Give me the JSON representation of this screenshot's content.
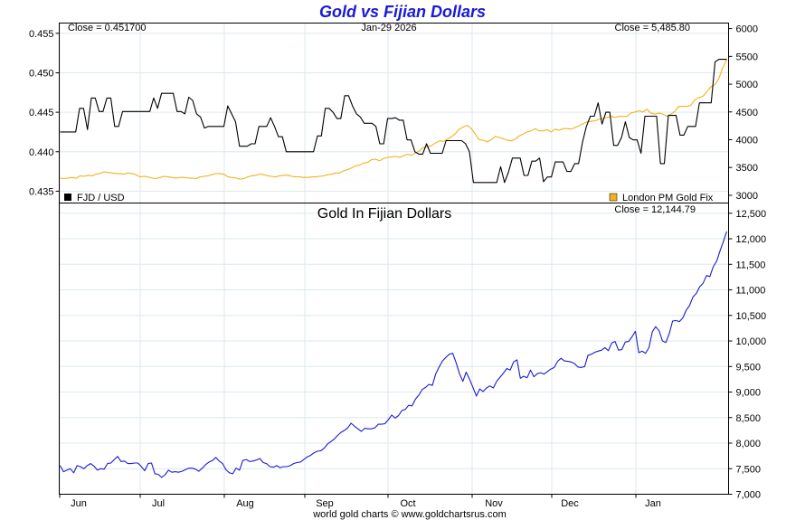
{
  "chart_data": [
    {
      "type": "line",
      "title": "Gold vs Fijian Dollars",
      "date": "Jan-29  2026",
      "left_axis": {
        "ylim": [
          0.4335,
          0.4563
        ],
        "ticks": [
          "0.455",
          "0.450",
          "0.445",
          "0.440",
          "0.435"
        ],
        "tick_values": [
          0.455,
          0.45,
          0.445,
          0.44,
          0.435
        ]
      },
      "right_axis": {
        "ylim": [
          2860,
          6100
        ],
        "ticks": [
          "6000",
          "5500",
          "5000",
          "4500",
          "4000",
          "3500",
          "3000"
        ],
        "tick_values": [
          6000,
          5500,
          5000,
          4500,
          4000,
          3500,
          3000
        ]
      },
      "x_labels": [
        "Jun",
        "Jul",
        "Aug",
        "Sep",
        "Oct",
        "Nov",
        "Dec",
        "Jan"
      ],
      "grid": true,
      "series": [
        {
          "name": "FJD / USD",
          "close_label": "Close = 0.451700",
          "color": "#000000",
          "axis": "left",
          "values": [
            0.4425,
            0.4425,
            0.4425,
            0.4425,
            0.4425,
            0.4455,
            0.4455,
            0.4428,
            0.4468,
            0.4468,
            0.4451,
            0.4451,
            0.4468,
            0.4468,
            0.4432,
            0.4432,
            0.4451,
            0.4451,
            0.4451,
            0.4451,
            0.4451,
            0.4451,
            0.4451,
            0.4451,
            0.4468,
            0.4455,
            0.4474,
            0.4474,
            0.4474,
            0.4474,
            0.4451,
            0.4451,
            0.4448,
            0.4469,
            0.4465,
            0.4448,
            0.4444,
            0.443,
            0.4432,
            0.4432,
            0.4432,
            0.4432,
            0.4432,
            0.4458,
            0.4448,
            0.4438,
            0.4407,
            0.4407,
            0.4407,
            0.441,
            0.441,
            0.4432,
            0.4432,
            0.4432,
            0.4443,
            0.4432,
            0.4419,
            0.4419,
            0.44,
            0.44,
            0.44,
            0.44,
            0.44,
            0.44,
            0.44,
            0.44,
            0.442,
            0.442,
            0.4455,
            0.4455,
            0.445,
            0.4442,
            0.4442,
            0.4471,
            0.4471,
            0.4458,
            0.4448,
            0.4444,
            0.4436,
            0.4436,
            0.4436,
            0.4432,
            0.441,
            0.441,
            0.4442,
            0.4442,
            0.4443,
            0.444,
            0.444,
            0.4415,
            0.4415,
            0.44,
            0.4397,
            0.4397,
            0.441,
            0.4398,
            0.4398,
            0.4398,
            0.4398,
            0.4414,
            0.4414,
            0.4414,
            0.4414,
            0.4414,
            0.441,
            0.44,
            0.4361,
            0.4361,
            0.4361,
            0.4361,
            0.4361,
            0.4361,
            0.4361,
            0.4381,
            0.4361,
            0.4374,
            0.4392,
            0.4392,
            0.4392,
            0.437,
            0.437,
            0.4388,
            0.4388,
            0.4392,
            0.4362,
            0.4368,
            0.4368,
            0.4387,
            0.4387,
            0.4387,
            0.4375,
            0.4375,
            0.4385,
            0.4385,
            0.4412,
            0.4432,
            0.4445,
            0.4445,
            0.4462,
            0.4435,
            0.445,
            0.445,
            0.4408,
            0.4408,
            0.4418,
            0.4438,
            0.4418,
            0.4415,
            0.4415,
            0.4398,
            0.4445,
            0.4445,
            0.4445,
            0.4445,
            0.4385,
            0.4385,
            0.4446,
            0.4446,
            0.4446,
            0.4421,
            0.4421,
            0.4432,
            0.4432,
            0.4432,
            0.4462,
            0.4462,
            0.4462,
            0.4462,
            0.4514,
            0.4517,
            0.4517,
            0.4517
          ]
        },
        {
          "name": "London PM Gold Fix",
          "close_label": "Close = 5,485.80",
          "color": "#f0b21b",
          "axis": "right",
          "values": [
            3310,
            3300,
            3310,
            3320,
            3305,
            3350,
            3340,
            3360,
            3350,
            3380,
            3390,
            3420,
            3410,
            3400,
            3390,
            3390,
            3380,
            3400,
            3390,
            3370,
            3330,
            3340,
            3330,
            3310,
            3300,
            3320,
            3340,
            3330,
            3320,
            3310,
            3320,
            3320,
            3310,
            3310,
            3300,
            3330,
            3340,
            3350,
            3370,
            3390,
            3390,
            3380,
            3330,
            3320,
            3310,
            3290,
            3300,
            3330,
            3350,
            3360,
            3380,
            3370,
            3350,
            3340,
            3330,
            3350,
            3360,
            3360,
            3340,
            3330,
            3330,
            3320,
            3320,
            3330,
            3330,
            3340,
            3350,
            3370,
            3380,
            3400,
            3400,
            3440,
            3460,
            3490,
            3530,
            3540,
            3580,
            3590,
            3640,
            3650,
            3620,
            3660,
            3680,
            3690,
            3700,
            3680,
            3710,
            3740,
            3720,
            3760,
            3800,
            3860,
            3870,
            3890,
            3940,
            3980,
            3970,
            4010,
            4050,
            4110,
            4190,
            4230,
            4260,
            4200,
            4100,
            4000,
            3990,
            3960,
            4000,
            4060,
            4040,
            4020,
            3990,
            3980,
            4010,
            4070,
            4100,
            4140,
            4160,
            4200,
            4160,
            4160,
            4180,
            4140,
            4190,
            4170,
            4200,
            4200,
            4190,
            4220,
            4250,
            4290,
            4320,
            4330,
            4340,
            4370,
            4380,
            4400,
            4420,
            4400,
            4420,
            4420,
            4420,
            4480,
            4500,
            4520,
            4500,
            4550,
            4480,
            4460,
            4480,
            4460,
            4420,
            4460,
            4510,
            4600,
            4600,
            4600,
            4620,
            4720,
            4760,
            4780,
            4860,
            4950,
            4990,
            5100,
            5300,
            5440
          ]
        }
      ]
    },
    {
      "type": "line",
      "title": "Gold In Fijian Dollars",
      "close_label": "Close = 12,144.79",
      "ylim": [
        7000,
        12700
      ],
      "ticks": [
        "12,500",
        "12,000",
        "11,500",
        "11,000",
        "10,500",
        "10,000",
        "9,500",
        "9,000",
        "8,500",
        "8,000",
        "7,500",
        "7,000"
      ],
      "tick_values": [
        12500,
        12000,
        11500,
        11000,
        10500,
        10000,
        9500,
        9000,
        8500,
        8000,
        7500,
        7000
      ],
      "x_labels": [
        "Jun",
        "Jul",
        "Aug",
        "Sep",
        "Oct",
        "Nov",
        "Dec",
        "Jan"
      ],
      "grid": true,
      "series": [
        {
          "color": "#1c1ccf",
          "values": [
            7560,
            7440,
            7470,
            7500,
            7420,
            7560,
            7540,
            7500,
            7560,
            7600,
            7550,
            7470,
            7500,
            7490,
            7600,
            7610,
            7680,
            7740,
            7640,
            7650,
            7600,
            7600,
            7610,
            7610,
            7540,
            7460,
            7600,
            7610,
            7400,
            7390,
            7330,
            7380,
            7470,
            7430,
            7440,
            7430,
            7450,
            7480,
            7510,
            7510,
            7490,
            7450,
            7510,
            7580,
            7630,
            7660,
            7720,
            7650,
            7600,
            7480,
            7420,
            7400,
            7510,
            7470,
            7660,
            7680,
            7640,
            7650,
            7670,
            7700,
            7620,
            7600,
            7540,
            7530,
            7560,
            7520,
            7540,
            7540,
            7560,
            7600,
            7620,
            7630,
            7680,
            7730,
            7760,
            7810,
            7840,
            7850,
            7900,
            7980,
            8030,
            8080,
            8150,
            8210,
            8250,
            8300,
            8390,
            8330,
            8280,
            8230,
            8290,
            8280,
            8280,
            8300,
            8370,
            8370,
            8380,
            8460,
            8550,
            8490,
            8540,
            8640,
            8660,
            8740,
            8730,
            8860,
            8940,
            9050,
            9090,
            9150,
            9130,
            9360,
            9490,
            9610,
            9680,
            9740,
            9760,
            9580,
            9360,
            9210,
            9390,
            9250,
            9090,
            8920,
            9060,
            9010,
            9080,
            9120,
            9080,
            9210,
            9290,
            9370,
            9460,
            9430,
            9590,
            9630,
            9270,
            9310,
            9280,
            9430,
            9300,
            9360,
            9380,
            9350,
            9400,
            9450,
            9480,
            9600,
            9660,
            9610,
            9600,
            9590,
            9560,
            9490,
            9480,
            9500,
            9720,
            9740,
            9780,
            9800,
            9820,
            9870,
            9810,
            9960,
            9990,
            9820,
            9830,
            9980,
            9990,
            10080,
            10190,
            9770,
            9800,
            9760,
            9870,
            10180,
            10280,
            10200,
            10000,
            9970,
            10140,
            10390,
            10400,
            10380,
            10450,
            10600,
            10690,
            10860,
            10930,
            11060,
            11130,
            11280,
            11260,
            11450,
            11560,
            11760,
            11950,
            12144.79
          ]
        }
      ]
    }
  ],
  "labels": {
    "title": "Gold vs Fijian Dollars",
    "top_close_left": "Close = 0.451700",
    "top_date": "Jan-29  2026",
    "top_close_right": "Close = 5,485.80",
    "legend_fjd": "FJD / USD",
    "legend_gold": "London PM Gold Fix",
    "bottom_subtitle": "Gold In Fijian Dollars",
    "bottom_close": "Close = 12,144.79",
    "footer": "world gold charts © www.goldchartsrus.com"
  }
}
